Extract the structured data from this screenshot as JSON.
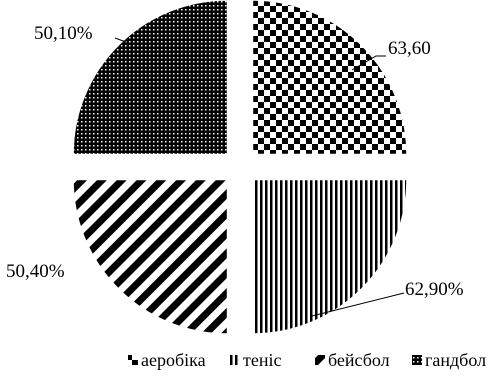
{
  "chart_data": {
    "type": "pie",
    "title": "",
    "categories": [
      "аеробіка",
      "теніс",
      "бейсбол",
      "гандбол"
    ],
    "values": [
      63.6,
      62.9,
      50.4,
      50.1
    ],
    "value_labels": [
      "63,60",
      "62,90%",
      "50,40%",
      "50,10%"
    ],
    "patterns": [
      "checkerboard",
      "vertical-stripes",
      "diagonal-stripes",
      "dots"
    ],
    "exploded": true,
    "legend_position": "bottom"
  }
}
